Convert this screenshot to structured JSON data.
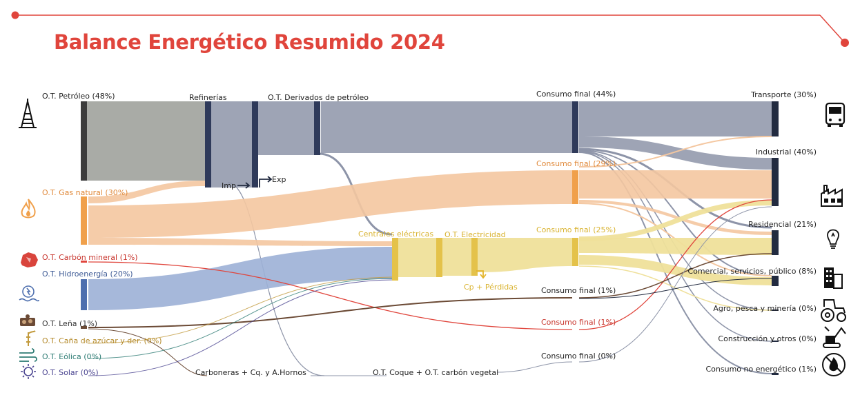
{
  "title": "Balance Energético Resumido 2024",
  "colors": {
    "accent": "#e0453c",
    "petroleo_node": "#3c3c3c",
    "petroleo_flow": "#9a9c97",
    "derivados_flow": "#8d94a8",
    "refineria_node": "#2f3a5a",
    "gas": "#f0a04b",
    "gas_flow": "#f4c7a0",
    "electricidad": "#e4c24a",
    "electricidad_flow": "#efe09a",
    "hidro": "#4e6fae",
    "hidro_flow": "#9cb0d6",
    "carbon": "#d9443c",
    "lena": "#6b4a35",
    "cana": "#c29a3c",
    "eolica": "#2e7c74",
    "solar": "#4a4490",
    "sector_node": "#222b40"
  },
  "icons": {
    "petroleo": "oil-derrick-icon",
    "gas": "flame-icon",
    "carbon": "coal-icon",
    "hidro": "hydro-plant-icon",
    "lena": "firewood-icon",
    "cana": "sugarcane-icon",
    "eolica": "wind-icon",
    "solar": "sun-icon",
    "transporte": "bus-icon",
    "industrial": "factory-icon",
    "residencial": "lightbulb-icon",
    "comercial": "office-building-icon",
    "agro": "tractor-icon",
    "construccion": "excavator-icon",
    "no_energetico": "prohibited-flame-icon"
  },
  "labels": {
    "sources": {
      "petroleo": "O.T. Petróleo (48%)",
      "gas": "O.T. Gas natural (30%)",
      "carbon": "O.T. Carbón mineral (1%)",
      "hidro": "O.T. Hidroenergía (20%)",
      "lena": "O.T. Leña (1%)",
      "cana": "O.T. Caña de azúcar y der. (0%)",
      "eolica": "O.T. Eólica (0%)",
      "solar": "O.T. Solar (0%)"
    },
    "transform": {
      "refinerias": "Refinerías",
      "derivados": "O.T. Derivados de petróleo",
      "imp": "Imp",
      "exp": "Exp",
      "centrales": "Centrales eléctricas",
      "electricidad": "O.T. Electricidad",
      "perdidas": "Cp + Pérdidas",
      "carboneras": "Carboneras + Cq. y A.Hornos",
      "coque": "O.T. Coque + O.T. carbón vegetal"
    },
    "consumo": {
      "petroleo": "Consumo final (44%)",
      "gas": "Consumo final (29%)",
      "electricidad": "Consumo final (25%)",
      "lena": "Consumo final (1%)",
      "carbon": "Consumo final (1%)",
      "coque": "Consumo final (0%)"
    },
    "sectors": {
      "transporte": "Transporte (30%)",
      "industrial": "Industrial (40%)",
      "residencial": "Residencial (21%)",
      "comercial": "Comercial, servicios, público (8%)",
      "agro": "Agro, pesca y minería (0%)",
      "construccion": "Construcción y otros (0%)",
      "no_energetico": "Consumo no energético (1%)"
    }
  },
  "chart_data": {
    "type": "sankey",
    "title": "Balance Energético Resumido 2024",
    "sources_percent": {
      "O.T. Petróleo": 48,
      "O.T. Gas natural": 30,
      "O.T. Carbón mineral": 1,
      "O.T. Hidroenergía": 20,
      "O.T. Leña": 1,
      "O.T. Caña de azúcar y der.": 0,
      "O.T. Eólica": 0,
      "O.T. Solar": 0
    },
    "final_consumption_percent": {
      "Derivados de petróleo": 44,
      "Gas natural": 29,
      "Electricidad": 25,
      "Leña": 1,
      "Carbón mineral": 1,
      "Coque + carbón vegetal": 0
    },
    "sectors_percent": {
      "Transporte": 30,
      "Industrial": 40,
      "Residencial": 21,
      "Comercial, servicios, público": 8,
      "Agro, pesca y minería": 0,
      "Construcción y otros": 0,
      "Consumo no energético": 1
    }
  }
}
